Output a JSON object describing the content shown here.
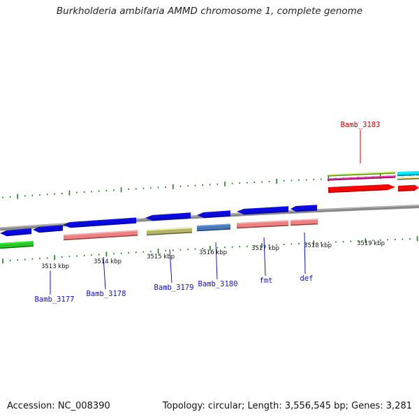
{
  "title": "Burkholderia ambifaria AMMD chromosome 1, complete genome",
  "accession": "Accession: NC_008390",
  "topology": "Topology: circular; Length: 3,556,545 bp; Genes: 3,281",
  "colors": {
    "backbone": "#8a8a8a",
    "tick": "#1e7a1e",
    "cds_forward_strand": "#0a0adc",
    "rna_pink": "#f08080",
    "olive": "#b4b46e",
    "steelblue": "#4a78b4",
    "green": "#28c828",
    "red": "#ff0000",
    "cyan": "#00e0ff",
    "magenta": "#e02890",
    "lime": "#a0ff50",
    "gene_label_blue": "#1212c8",
    "gene_label_red": "#cc0000"
  },
  "tick_labels": [
    "3513 kbp",
    "3514 kbp",
    "3515 kbp",
    "3516 kbp",
    "3517 kbp",
    "3518 kbp",
    "3519 kbp"
  ],
  "gene_labels": [
    {
      "text": "Bamb_3177",
      "color": "blue"
    },
    {
      "text": "Bamb_3178",
      "color": "blue"
    },
    {
      "text": "Bamb_3179",
      "color": "blue"
    },
    {
      "text": "Bamb_3180",
      "color": "blue"
    },
    {
      "text": "fmt",
      "color": "blue"
    },
    {
      "text": "def",
      "color": "blue"
    },
    {
      "text": "Bamb_3183",
      "color": "red"
    }
  ],
  "features": [
    {
      "track": "lower-cds",
      "color": "cds_forward_strand",
      "direction": "left"
    },
    {
      "track": "lower-cds",
      "color": "cds_forward_strand",
      "direction": "left"
    },
    {
      "track": "lower-cds",
      "color": "cds_forward_strand",
      "direction": "left"
    },
    {
      "track": "lower-cds",
      "color": "cds_forward_strand",
      "direction": "left"
    },
    {
      "track": "lower-cds",
      "color": "cds_forward_strand",
      "direction": "left"
    },
    {
      "track": "lower-cds",
      "color": "cds_forward_strand",
      "direction": "left"
    },
    {
      "track": "lower-cds",
      "color": "cds_forward_strand",
      "direction": "left"
    },
    {
      "track": "lower-sub",
      "color": "green",
      "direction": "none"
    },
    {
      "track": "lower-sub",
      "color": "rna_pink",
      "direction": "none"
    },
    {
      "track": "lower-sub",
      "color": "olive",
      "direction": "none"
    },
    {
      "track": "lower-sub",
      "color": "steelblue",
      "direction": "none"
    },
    {
      "track": "lower-sub",
      "color": "rna_pink",
      "direction": "none"
    },
    {
      "track": "lower-sub",
      "color": "rna_pink",
      "direction": "none"
    },
    {
      "track": "upper-cds",
      "color": "red",
      "direction": "right"
    },
    {
      "track": "upper-cds",
      "color": "red",
      "direction": "right"
    },
    {
      "track": "upper-sub",
      "color": "lime",
      "direction": "none"
    },
    {
      "track": "upper-sub",
      "color": "magenta",
      "direction": "none"
    },
    {
      "track": "upper-sub",
      "color": "cyan",
      "direction": "none"
    },
    {
      "track": "upper-sub",
      "color": "olive",
      "direction": "none"
    }
  ]
}
